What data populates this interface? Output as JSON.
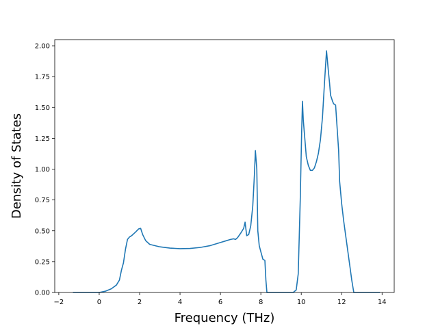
{
  "chart_data": {
    "type": "line",
    "title": "",
    "xlabel": "Frequency (THz)",
    "ylabel": "Density of States",
    "xlim": [
      -2.2,
      14.6
    ],
    "ylim": [
      0.0,
      2.05
    ],
    "xticks": [
      -2,
      0,
      2,
      4,
      6,
      8,
      10,
      12,
      14
    ],
    "xtick_labels": [
      "−2",
      "0",
      "2",
      "4",
      "6",
      "8",
      "10",
      "12",
      "14"
    ],
    "yticks": [
      0.0,
      0.25,
      0.5,
      0.75,
      1.0,
      1.25,
      1.5,
      1.75,
      2.0
    ],
    "ytick_labels": [
      "0.00",
      "0.25",
      "0.50",
      "0.75",
      "1.00",
      "1.25",
      "1.50",
      "1.75",
      "2.00"
    ],
    "grid": false,
    "line_color": "#1f77b4",
    "series": [
      {
        "x": [
          -1.3,
          0.0,
          0.3,
          0.6,
          0.85,
          1.0,
          1.1,
          1.2,
          1.3,
          1.4,
          1.5,
          1.6,
          1.8,
          1.95,
          2.05,
          2.15,
          2.3,
          2.5,
          3.0,
          3.5,
          4.0,
          4.5,
          5.0,
          5.5,
          6.0,
          6.3,
          6.5,
          6.65,
          6.75,
          6.85,
          7.0,
          7.15,
          7.22,
          7.3,
          7.4,
          7.5,
          7.6,
          7.68,
          7.73,
          7.8,
          7.85,
          7.92,
          8.0,
          8.1,
          8.2,
          8.25,
          8.3,
          9.6,
          9.75,
          9.85,
          9.95,
          10.02,
          10.06,
          10.1,
          10.15,
          10.2,
          10.25,
          10.35,
          10.45,
          10.55,
          10.65,
          10.75,
          10.85,
          10.95,
          11.05,
          11.15,
          11.25,
          11.35,
          11.4,
          11.45,
          11.55,
          11.6,
          11.7,
          11.85,
          11.9,
          12.0,
          12.1,
          12.2,
          12.3,
          12.4,
          12.5,
          12.6,
          12.65,
          13.9
        ],
        "y": [
          0.0,
          0.0,
          0.01,
          0.03,
          0.06,
          0.1,
          0.18,
          0.24,
          0.35,
          0.43,
          0.45,
          0.46,
          0.49,
          0.515,
          0.52,
          0.47,
          0.42,
          0.39,
          0.37,
          0.36,
          0.355,
          0.357,
          0.365,
          0.38,
          0.405,
          0.42,
          0.43,
          0.435,
          0.43,
          0.445,
          0.48,
          0.52,
          0.57,
          0.46,
          0.47,
          0.54,
          0.7,
          0.95,
          1.15,
          1.0,
          0.5,
          0.38,
          0.33,
          0.27,
          0.26,
          0.1,
          0.0,
          0.0,
          0.02,
          0.15,
          0.75,
          1.3,
          1.55,
          1.4,
          1.3,
          1.2,
          1.1,
          1.03,
          0.99,
          0.99,
          1.01,
          1.06,
          1.13,
          1.24,
          1.42,
          1.7,
          1.96,
          1.78,
          1.7,
          1.6,
          1.55,
          1.53,
          1.52,
          1.15,
          0.9,
          0.72,
          0.58,
          0.46,
          0.34,
          0.22,
          0.1,
          0.0,
          0.0,
          0.0
        ]
      }
    ]
  }
}
